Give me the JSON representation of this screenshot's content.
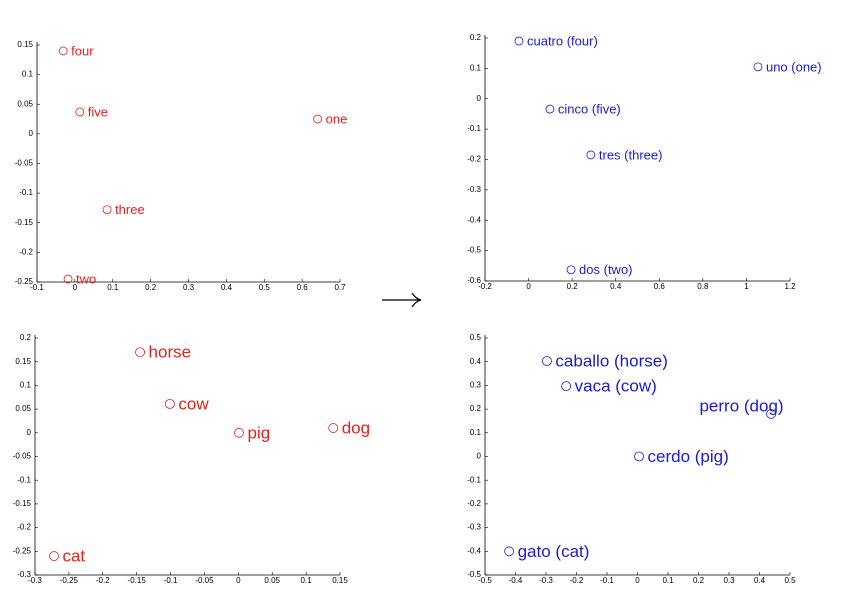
{
  "chart_data": [
    {
      "type": "scatter",
      "color": "#e8201c",
      "labels": [
        "four",
        "five",
        "one",
        "three",
        "two"
      ],
      "x": [
        -0.031,
        0.013,
        0.641,
        0.085,
        -0.018
      ],
      "values": [
        0.14,
        0.037,
        0.025,
        -0.128,
        -0.245
      ],
      "xlim": [
        -0.1,
        0.7
      ],
      "ylim": [
        -0.25,
        0.15
      ],
      "xticks": [
        -0.1,
        0,
        0.1,
        0.2,
        0.3,
        0.4,
        0.5,
        0.6,
        0.7
      ],
      "yticks": [
        -0.25,
        -0.2,
        -0.15,
        -0.1,
        -0.05,
        0,
        0.05,
        0.1,
        0.15
      ]
    },
    {
      "type": "scatter",
      "color": "#1a1ad8",
      "labels": [
        "cuatro (four)",
        "uno (one)",
        "cinco (five)",
        "tres (three)",
        "dos (two)"
      ],
      "x": [
        -0.044,
        1.053,
        0.098,
        0.286,
        0.195
      ],
      "values": [
        0.19,
        0.105,
        -0.034,
        -0.185,
        -0.563
      ],
      "xlim": [
        -0.2,
        1.2
      ],
      "ylim": [
        -0.6,
        0.2
      ],
      "xticks": [
        -0.2,
        0,
        0.2,
        0.4,
        0.6,
        0.8,
        1,
        1.2
      ],
      "yticks": [
        -0.6,
        -0.5,
        -0.4,
        -0.3,
        -0.2,
        -0.1,
        0,
        0.1,
        0.2
      ]
    },
    {
      "type": "scatter",
      "color": "#e8201c",
      "labels": [
        "horse",
        "cow",
        "pig",
        "dog",
        "cat"
      ],
      "x": [
        -0.145,
        -0.101,
        0.001,
        0.14,
        -0.272
      ],
      "values": [
        0.17,
        0.061,
        0,
        0.01,
        -0.26
      ],
      "xlim": [
        -0.3,
        0.15
      ],
      "ylim": [
        -0.3,
        0.2
      ],
      "xticks": [
        -0.3,
        -0.25,
        -0.2,
        -0.15,
        -0.1,
        -0.05,
        0,
        0.05,
        0.1,
        0.15
      ],
      "yticks": [
        -0.3,
        -0.25,
        -0.2,
        -0.15,
        -0.1,
        -0.05,
        0,
        0.05,
        0.1,
        0.15,
        0.2
      ]
    },
    {
      "type": "scatter",
      "color": "#1a1ad8",
      "labels": [
        "caballo (horse)",
        "vaca (cow)",
        "perro (dog)",
        "cerdo (pig)",
        "gato (cat)"
      ],
      "x": [
        -0.297,
        -0.234,
        0.438,
        0.005,
        -0.421
      ],
      "values": [
        0.403,
        0.297,
        0.18,
        0,
        -0.4
      ],
      "xlim": [
        -0.5,
        0.5
      ],
      "ylim": [
        -0.5,
        0.5
      ],
      "xticks": [
        -0.5,
        -0.4,
        -0.3,
        -0.2,
        -0.1,
        0,
        0.1,
        0.2,
        0.3,
        0.4,
        0.5
      ],
      "yticks": [
        -0.5,
        -0.4,
        -0.3,
        -0.2,
        -0.1,
        0,
        0.1,
        0.2,
        0.3,
        0.4,
        0.5
      ]
    }
  ]
}
